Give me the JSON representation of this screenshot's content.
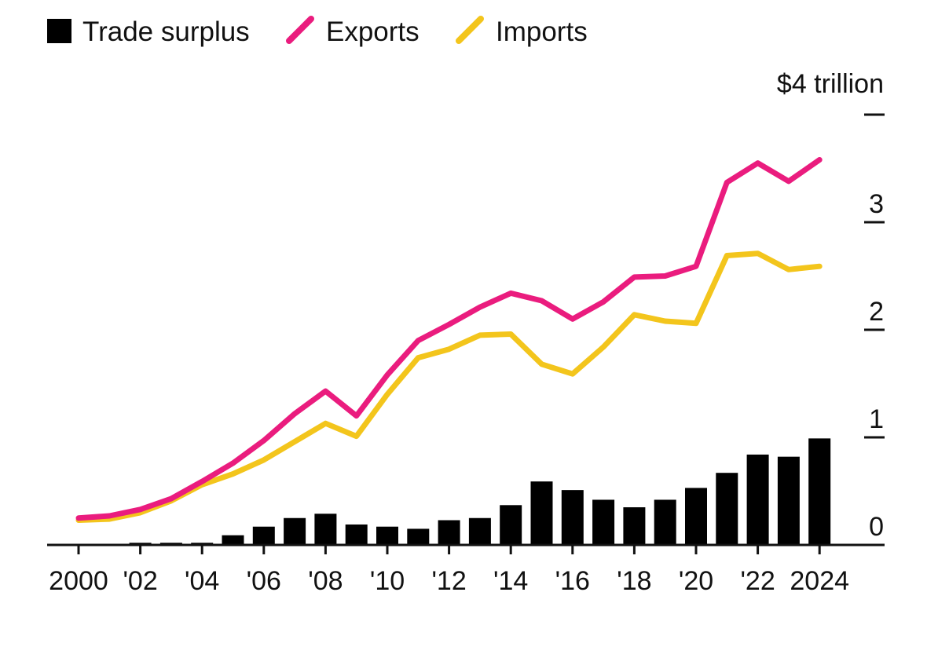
{
  "legend": [
    {
      "label": "Trade surplus",
      "color": "#000000",
      "shape": "square"
    },
    {
      "label": "Exports",
      "color": "#ea1c7e",
      "shape": "slash"
    },
    {
      "label": "Imports",
      "color": "#f3c51c",
      "shape": "slash"
    }
  ],
  "chart_data": {
    "type": "bar+line",
    "unit_label": "$4 trillion",
    "years": [
      2000,
      2001,
      2002,
      2003,
      2004,
      2005,
      2006,
      2007,
      2008,
      2009,
      2010,
      2011,
      2012,
      2013,
      2014,
      2015,
      2016,
      2017,
      2018,
      2019,
      2020,
      2021,
      2022,
      2023,
      2024
    ],
    "x_ticks": [
      {
        "year": 2000,
        "label": "2000"
      },
      {
        "year": 2002,
        "label": "'02"
      },
      {
        "year": 2004,
        "label": "'04"
      },
      {
        "year": 2006,
        "label": "'06"
      },
      {
        "year": 2008,
        "label": "'08"
      },
      {
        "year": 2010,
        "label": "'10"
      },
      {
        "year": 2012,
        "label": "'12"
      },
      {
        "year": 2014,
        "label": "'14"
      },
      {
        "year": 2016,
        "label": "'16"
      },
      {
        "year": 2018,
        "label": "'18"
      },
      {
        "year": 2020,
        "label": "'20"
      },
      {
        "year": 2022,
        "label": "'22"
      },
      {
        "year": 2024,
        "label": "2024"
      }
    ],
    "y_ticks": [
      {
        "value": 4,
        "label": ""
      },
      {
        "value": 3,
        "label": "3"
      },
      {
        "value": 2,
        "label": "2"
      },
      {
        "value": 1,
        "label": "1"
      },
      {
        "value": 0,
        "label": "0"
      }
    ],
    "ylim": [
      0,
      4
    ],
    "series": [
      {
        "name": "Trade surplus",
        "kind": "bar",
        "color": "#000000",
        "values": [
          0.01,
          0.01,
          0.02,
          0.02,
          0.02,
          0.09,
          0.17,
          0.25,
          0.29,
          0.19,
          0.17,
          0.15,
          0.23,
          0.25,
          0.37,
          0.59,
          0.51,
          0.42,
          0.35,
          0.42,
          0.53,
          0.67,
          0.84,
          0.82,
          0.99
        ]
      },
      {
        "name": "Exports",
        "kind": "line",
        "color": "#ea1c7e",
        "values": [
          0.25,
          0.27,
          0.33,
          0.43,
          0.59,
          0.76,
          0.97,
          1.22,
          1.43,
          1.2,
          1.58,
          1.9,
          2.05,
          2.21,
          2.34,
          2.27,
          2.1,
          2.26,
          2.49,
          2.5,
          2.59,
          3.37,
          3.55,
          3.38,
          3.58
        ]
      },
      {
        "name": "Imports",
        "kind": "line",
        "color": "#f3c51c",
        "values": [
          0.23,
          0.24,
          0.3,
          0.41,
          0.56,
          0.66,
          0.79,
          0.96,
          1.13,
          1.01,
          1.4,
          1.74,
          1.82,
          1.95,
          1.96,
          1.68,
          1.59,
          1.84,
          2.14,
          2.08,
          2.06,
          2.69,
          2.71,
          2.56,
          2.59
        ]
      }
    ]
  }
}
